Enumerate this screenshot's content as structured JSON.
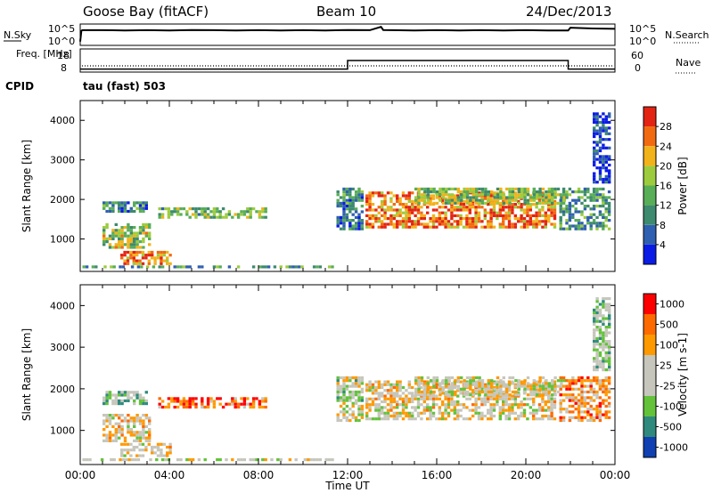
{
  "header": {
    "left": "Goose Bay (fitACF)",
    "center": "Beam 10",
    "right": "24/Dec/2013",
    "cpid_label": "CPID",
    "cpid_value": "tau (fast) 503"
  },
  "colors": {
    "power_scale": [
      "#0a1be6",
      "#2f5fb0",
      "#3d8a6e",
      "#58ad57",
      "#9dcb3e",
      "#f2b21a",
      "#f26a10",
      "#e42412"
    ],
    "velocity_scale": [
      "#ff0000",
      "#ff6a00",
      "#ff9900",
      "#c6c6bc",
      "#c6c6bc",
      "#63c23a",
      "#2f8a7d",
      "#1040b2"
    ],
    "sky_line": "#000000",
    "background": "#ffffff"
  },
  "chart_data": [
    {
      "type": "line",
      "panel": "noise",
      "ylabel": "N.Sky",
      "ytick_labels": [
        "10^5",
        "10^0"
      ],
      "right_label": "N.Search",
      "right_tick_labels": [
        "10^5",
        "10^0"
      ],
      "xlim": [
        0,
        24
      ],
      "series": [
        {
          "name": "N.Sky",
          "x": [
            0,
            0.05,
            0.1,
            1,
            2,
            3,
            4,
            5,
            6,
            7,
            8,
            9,
            10,
            11,
            12,
            13,
            13.5,
            13.6,
            14,
            15,
            16,
            17,
            18,
            19,
            20,
            21,
            21.9,
            22,
            23,
            24
          ],
          "y": [
            0.15,
            0.7,
            0.73,
            0.73,
            0.72,
            0.73,
            0.72,
            0.74,
            0.73,
            0.72,
            0.73,
            0.72,
            0.73,
            0.72,
            0.74,
            0.73,
            0.9,
            0.74,
            0.73,
            0.72,
            0.73,
            0.72,
            0.73,
            0.72,
            0.73,
            0.72,
            0.72,
            0.86,
            0.82,
            0.8
          ]
        }
      ]
    },
    {
      "type": "line",
      "panel": "frequency",
      "ylabel": "Freq. [MHz]",
      "yticks": [
        8,
        18
      ],
      "right_label": "Nave",
      "right_ticks": [
        0,
        60
      ],
      "xlim": [
        0,
        24
      ],
      "series": [
        {
          "name": "Freq.",
          "x": [
            0,
            12,
            12,
            21.9,
            21.9,
            24
          ],
          "y": [
            9.0,
            9.0,
            13.0,
            13.0,
            9.0,
            9.0
          ]
        }
      ]
    },
    {
      "type": "heatmap",
      "panel": "power",
      "ylabel": "Slant Range [km]",
      "xlim": [
        0,
        24
      ],
      "ylim": [
        180,
        4500
      ],
      "yticks": [
        1000,
        2000,
        3000,
        4000
      ],
      "colorbar_label": "Power [dB]",
      "colorbar_range": [
        0,
        32
      ],
      "colorbar_ticks": [
        4,
        8,
        12,
        16,
        20,
        24,
        28
      ],
      "regions": [
        {
          "t0": 1.0,
          "t1": 3.1,
          "r0": 1600,
          "r1": 1950,
          "level": 0.3
        },
        {
          "t0": 3.5,
          "t1": 8.5,
          "r0": 1480,
          "r1": 1800,
          "level": 0.45
        },
        {
          "t0": 1.0,
          "t1": 3.3,
          "r0": 700,
          "r1": 1400,
          "level": 0.55
        },
        {
          "t0": 1.8,
          "t1": 4.2,
          "r0": 300,
          "r1": 700,
          "level": 0.75
        },
        {
          "t0": 0.1,
          "t1": 11.5,
          "r0": 200,
          "r1": 330,
          "level": 0.35
        },
        {
          "t0": 11.5,
          "t1": 12.8,
          "r0": 1200,
          "r1": 2300,
          "level": 0.3
        },
        {
          "t0": 12.8,
          "t1": 21.5,
          "r0": 1200,
          "r1": 2200,
          "level": 0.8
        },
        {
          "t0": 15.0,
          "t1": 21.8,
          "r0": 1800,
          "r1": 2300,
          "level": 0.5
        },
        {
          "t0": 21.5,
          "t1": 23.9,
          "r0": 1200,
          "r1": 2300,
          "level": 0.35
        },
        {
          "t0": 23.0,
          "t1": 23.9,
          "r0": 2400,
          "r1": 4200,
          "level": 0.1
        }
      ]
    },
    {
      "type": "heatmap",
      "panel": "velocity",
      "ylabel": "Slant Range [km]",
      "xlim": [
        0,
        24
      ],
      "ylim": [
        180,
        4500
      ],
      "yticks": [
        1000,
        2000,
        3000,
        4000
      ],
      "colorbar_label": "Velocity [m s-1]",
      "colorbar_ticks": [
        1000,
        500,
        100,
        25,
        -25,
        -100,
        -500,
        -1000
      ],
      "regions": [
        {
          "t0": 1.0,
          "t1": 3.1,
          "r0": 1600,
          "r1": 1950,
          "level": 0.65
        },
        {
          "t0": 3.5,
          "t1": 8.5,
          "r0": 1480,
          "r1": 1800,
          "level": 0.2
        },
        {
          "t0": 1.0,
          "t1": 3.3,
          "r0": 700,
          "r1": 1400,
          "level": 0.45
        },
        {
          "t0": 1.8,
          "t1": 4.2,
          "r0": 300,
          "r1": 700,
          "level": 0.45
        },
        {
          "t0": 0.1,
          "t1": 11.5,
          "r0": 200,
          "r1": 330,
          "level": 0.55
        },
        {
          "t0": 11.5,
          "t1": 12.8,
          "r0": 1200,
          "r1": 2300,
          "level": 0.55
        },
        {
          "t0": 12.8,
          "t1": 21.5,
          "r0": 1200,
          "r1": 2200,
          "level": 0.45
        },
        {
          "t0": 15.0,
          "t1": 21.8,
          "r0": 1800,
          "r1": 2300,
          "level": 0.5
        },
        {
          "t0": 21.5,
          "t1": 23.9,
          "r0": 1200,
          "r1": 2300,
          "level": 0.3
        },
        {
          "t0": 23.0,
          "t1": 23.9,
          "r0": 2400,
          "r1": 4200,
          "level": 0.6
        }
      ]
    }
  ],
  "x_axis": {
    "label": "Time UT",
    "tick_labels": [
      "00:00",
      "04:00",
      "08:00",
      "12:00",
      "16:00",
      "20:00",
      "00:00"
    ]
  }
}
